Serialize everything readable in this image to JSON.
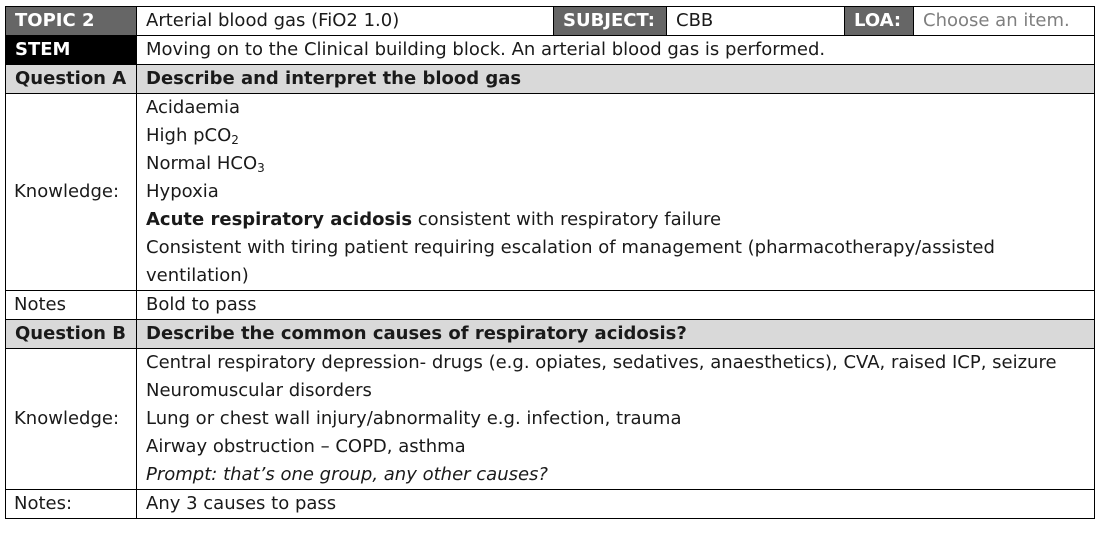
{
  "header": {
    "topic_label": "TOPIC 2",
    "topic_title": "Arterial blood gas (FiO2 1.0)",
    "subject_label": "SUBJECT:",
    "subject_value": "CBB",
    "loa_label": "LOA:",
    "loa_placeholder": "Choose an item."
  },
  "stem": {
    "label": "STEM",
    "text": "Moving on to the Clinical building block. An arterial blood gas is performed."
  },
  "question_a": {
    "label": "Question A",
    "prompt": "Describe and interpret the blood gas",
    "knowledge_label": "Knowledge:",
    "items": {
      "acidaemia": "Acidaemia",
      "pco2_prefix": "High pCO",
      "pco2_sub": "2",
      "hco3_prefix": "Normal HCO",
      "hco3_sub": "3",
      "hypoxia": "Hypoxia",
      "resp_bold": "Acute respiratory acidosis",
      "resp_rest": " consistent with respiratory failure",
      "tiring": "Consistent with tiring patient requiring escalation of management (pharmacotherapy/assisted ventilation)"
    },
    "notes_label": "Notes",
    "notes_text": "Bold to pass"
  },
  "question_b": {
    "label": "Question B",
    "prompt": "Describe the common causes of respiratory acidosis?",
    "knowledge_label": "Knowledge:",
    "items": [
      "Central respiratory depression- drugs (e.g. opiates, sedatives, anaesthetics), CVA, raised ICP, seizure",
      "Neuromuscular disorders",
      "Lung or chest wall injury/abnormality e.g. infection, trauma",
      "Airway obstruction – COPD, asthma"
    ],
    "prompt_note": "Prompt: that’s one group, any other causes?",
    "notes_label": "Notes:",
    "notes_text": "Any 3 causes to pass"
  }
}
